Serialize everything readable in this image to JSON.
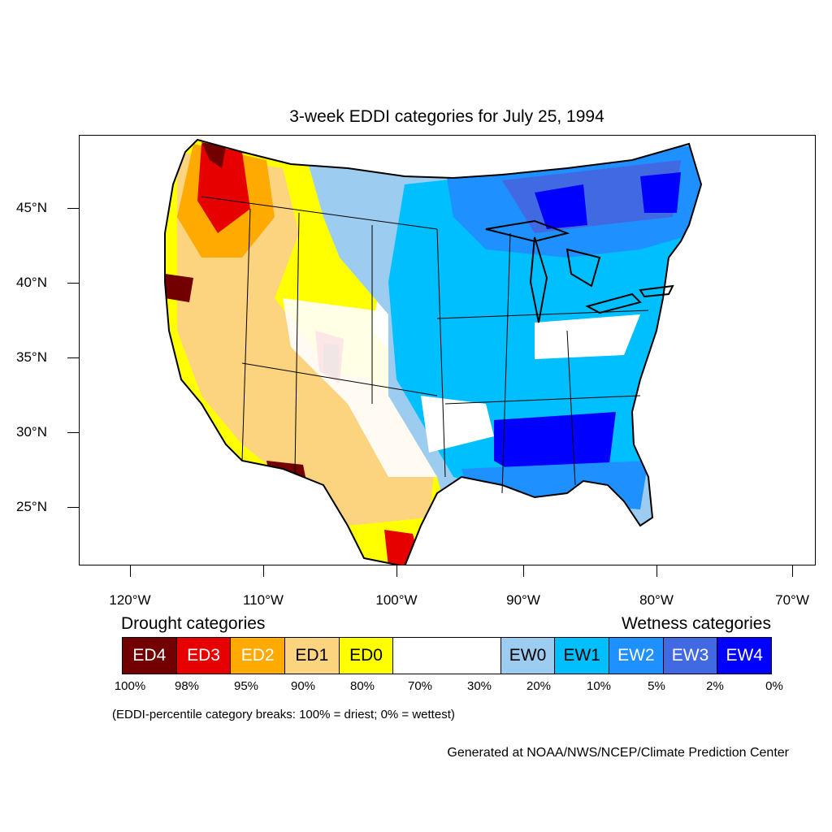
{
  "title": "3-week EDDI categories for July 25, 1994",
  "lat_labels": [
    "45°N",
    "40°N",
    "35°N",
    "30°N",
    "25°N"
  ],
  "lon_labels": [
    "120°W",
    "110°W",
    "100°W",
    "90°W",
    "80°W",
    "70°W"
  ],
  "legend": {
    "drought_heading": "Drought categories",
    "wetness_heading": "Wetness categories",
    "categories": [
      {
        "label": "ED4",
        "color": "#730000",
        "text_color": "#ffffff"
      },
      {
        "label": "ED3",
        "color": "#e60000",
        "text_color": "#ffffff"
      },
      {
        "label": "ED2",
        "color": "#ffaa00",
        "text_color": "#ffffff"
      },
      {
        "label": "ED1",
        "color": "#fcd37f",
        "text_color": "#000000"
      },
      {
        "label": "ED0",
        "color": "#ffff00",
        "text_color": "#000000"
      },
      {
        "label": "",
        "color": "#ffffff",
        "text_color": "#000000"
      },
      {
        "label": "EW0",
        "color": "#9ccdf0",
        "text_color": "#000000"
      },
      {
        "label": "EW1",
        "color": "#00bfff",
        "text_color": "#000000"
      },
      {
        "label": "EW2",
        "color": "#1e90ff",
        "text_color": "#ffffff"
      },
      {
        "label": "EW3",
        "color": "#4169e1",
        "text_color": "#ffffff"
      },
      {
        "label": "EW4",
        "color": "#0000ff",
        "text_color": "#ffffff"
      }
    ],
    "breaks": [
      "100%",
      "98%",
      "95%",
      "90%",
      "80%",
      "70%",
      "30%",
      "20%",
      "10%",
      "5%",
      "2%",
      "0%"
    ]
  },
  "note": "(EDDI-percentile category breaks: 100% = driest; 0% = wettest)",
  "credit": "Generated at NOAA/NWS/NCEP/Climate Prediction Center"
}
